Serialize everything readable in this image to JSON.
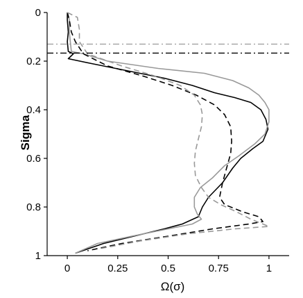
{
  "chart_data": {
    "type": "line",
    "title": "",
    "xlabel": "Ω(σ)",
    "ylabel": "Sigma",
    "xlim": [
      -0.1,
      1.1
    ],
    "ylim": [
      0,
      1
    ],
    "y_inverted": true,
    "grid": false,
    "legend": "none",
    "xticks": [
      0,
      0.25,
      0.5,
      0.75,
      1
    ],
    "xtick_labels": [
      "0",
      "0.25",
      "0.5",
      "0.75",
      "1"
    ],
    "yticks": [
      0,
      0.2,
      0.4,
      0.6,
      0.8,
      1
    ],
    "ytick_labels": [
      "0",
      "0.2",
      "0.4",
      "0.6",
      "0.8",
      "1"
    ],
    "hlines": [
      {
        "y": 0.13,
        "color": "#999999",
        "style": "dashdot"
      },
      {
        "y": 0.167,
        "color": "#000000",
        "style": "dashdot"
      }
    ],
    "series": [
      {
        "color": "#000000",
        "style": "solid",
        "points": [
          [
            0.0,
            0.0
          ],
          [
            0.0,
            0.03
          ],
          [
            0.005,
            0.08
          ],
          [
            0.0,
            0.12
          ],
          [
            0.005,
            0.16
          ],
          [
            0.03,
            0.17
          ],
          [
            0.005,
            0.19
          ],
          [
            0.12,
            0.21
          ],
          [
            0.3,
            0.24
          ],
          [
            0.48,
            0.27
          ],
          [
            0.62,
            0.3
          ],
          [
            0.73,
            0.33
          ],
          [
            0.83,
            0.35
          ],
          [
            0.91,
            0.37
          ],
          [
            0.96,
            0.4
          ],
          [
            0.985,
            0.44
          ],
          [
            0.995,
            0.48
          ],
          [
            0.97,
            0.53
          ],
          [
            0.92,
            0.56
          ],
          [
            0.86,
            0.6
          ],
          [
            0.82,
            0.64
          ],
          [
            0.77,
            0.7
          ],
          [
            0.7,
            0.76
          ],
          [
            0.67,
            0.8
          ],
          [
            0.65,
            0.84
          ],
          [
            0.57,
            0.87
          ],
          [
            0.48,
            0.89
          ],
          [
            0.33,
            0.92
          ],
          [
            0.18,
            0.95
          ],
          [
            0.04,
            0.99
          ]
        ]
      },
      {
        "color": "#999999",
        "style": "solid",
        "points": [
          [
            0.0,
            0.0
          ],
          [
            0.01,
            0.03
          ],
          [
            0.01,
            0.08
          ],
          [
            0.015,
            0.12
          ],
          [
            0.02,
            0.16
          ],
          [
            0.08,
            0.17
          ],
          [
            0.2,
            0.2
          ],
          [
            0.45,
            0.23
          ],
          [
            0.68,
            0.25
          ],
          [
            0.82,
            0.28
          ],
          [
            0.9,
            0.31
          ],
          [
            0.95,
            0.34
          ],
          [
            0.98,
            0.37
          ],
          [
            1.0,
            0.4
          ],
          [
            1.0,
            0.45
          ],
          [
            0.98,
            0.5
          ],
          [
            0.93,
            0.54
          ],
          [
            0.85,
            0.59
          ],
          [
            0.78,
            0.63
          ],
          [
            0.72,
            0.68
          ],
          [
            0.66,
            0.72
          ],
          [
            0.63,
            0.76
          ],
          [
            0.63,
            0.8
          ],
          [
            0.645,
            0.83
          ],
          [
            0.665,
            0.85
          ],
          [
            0.62,
            0.87
          ],
          [
            0.5,
            0.89
          ],
          [
            0.32,
            0.92
          ],
          [
            0.15,
            0.95
          ],
          [
            0.04,
            0.99
          ]
        ]
      },
      {
        "color": "#000000",
        "style": "dashed",
        "points": [
          [
            0.0,
            0.0
          ],
          [
            0.01,
            0.03
          ],
          [
            0.02,
            0.08
          ],
          [
            0.04,
            0.12
          ],
          [
            0.08,
            0.17
          ],
          [
            0.2,
            0.22
          ],
          [
            0.37,
            0.26
          ],
          [
            0.52,
            0.3
          ],
          [
            0.64,
            0.34
          ],
          [
            0.73,
            0.38
          ],
          [
            0.78,
            0.42
          ],
          [
            0.81,
            0.47
          ],
          [
            0.815,
            0.53
          ],
          [
            0.81,
            0.58
          ],
          [
            0.79,
            0.64
          ],
          [
            0.77,
            0.7
          ],
          [
            0.755,
            0.76
          ],
          [
            0.78,
            0.79
          ],
          [
            0.87,
            0.82
          ],
          [
            0.95,
            0.84
          ],
          [
            0.97,
            0.86
          ],
          [
            0.9,
            0.87
          ],
          [
            0.72,
            0.89
          ],
          [
            0.5,
            0.92
          ],
          [
            0.27,
            0.95
          ],
          [
            0.1,
            0.98
          ]
        ]
      },
      {
        "color": "#999999",
        "style": "dashed",
        "points": [
          [
            0.0,
            0.0
          ],
          [
            0.05,
            0.02
          ],
          [
            0.06,
            0.07
          ],
          [
            0.06,
            0.12
          ],
          [
            0.1,
            0.17
          ],
          [
            0.27,
            0.22
          ],
          [
            0.43,
            0.26
          ],
          [
            0.56,
            0.3
          ],
          [
            0.63,
            0.34
          ],
          [
            0.66,
            0.38
          ],
          [
            0.67,
            0.42
          ],
          [
            0.665,
            0.47
          ],
          [
            0.65,
            0.52
          ],
          [
            0.635,
            0.57
          ],
          [
            0.63,
            0.62
          ],
          [
            0.635,
            0.67
          ],
          [
            0.665,
            0.72
          ],
          [
            0.7,
            0.76
          ],
          [
            0.76,
            0.79
          ],
          [
            0.84,
            0.82
          ],
          [
            0.91,
            0.85
          ],
          [
            1.0,
            0.88
          ],
          [
            0.83,
            0.89
          ],
          [
            0.6,
            0.91
          ],
          [
            0.36,
            0.94
          ],
          [
            0.17,
            0.97
          ]
        ]
      }
    ]
  }
}
